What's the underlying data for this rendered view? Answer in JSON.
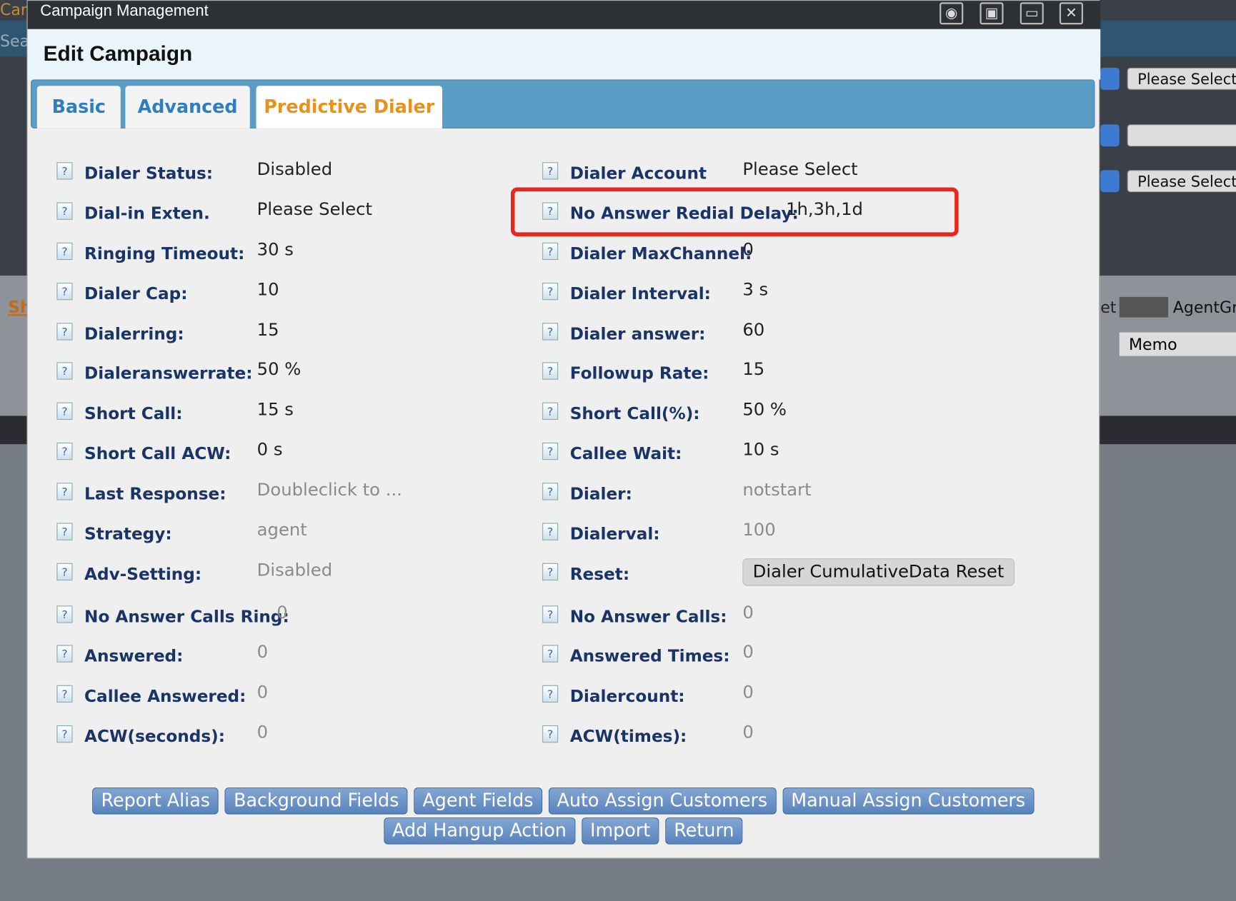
{
  "window": {
    "title": "Campaign Management",
    "heading": "Edit Campaign"
  },
  "background": {
    "left_top": "Can",
    "left_search": "Sea",
    "left_link": "Sh",
    "right_selects": [
      "Please Select",
      "",
      "Please Select"
    ],
    "right_label": "et",
    "right_agent": "AgentGr",
    "right_memo": "Memo"
  },
  "tabs": [
    "Basic",
    "Advanced",
    "Predictive Dialer"
  ],
  "left_fields": [
    {
      "label": "Dialer Status:",
      "value": "Disabled"
    },
    {
      "label": "Dial-in Exten.",
      "value": "Please Select"
    },
    {
      "label": "Ringing Timeout:",
      "value": "30 s"
    },
    {
      "label": "Dialer Cap:",
      "value": "10"
    },
    {
      "label": "Dialerring:",
      "value": "15"
    },
    {
      "label": "Dialeranswerrate:",
      "value": "50 %"
    },
    {
      "label": "Short Call:",
      "value": "15 s"
    },
    {
      "label": "Short Call ACW:",
      "value": "0 s"
    },
    {
      "label": "Last Response:",
      "value": "Doubleclick to ..."
    },
    {
      "label": "Strategy:",
      "value": "agent"
    },
    {
      "label": "Adv-Setting:",
      "value": "Disabled"
    },
    {
      "label": "No Answer Calls Ring:",
      "value": "0"
    },
    {
      "label": "Answered:",
      "value": "0"
    },
    {
      "label": "Callee Answered:",
      "value": "0"
    },
    {
      "label": "ACW(seconds):",
      "value": "0"
    }
  ],
  "right_fields": [
    {
      "label": "Dialer Account",
      "value": "Please Select"
    },
    {
      "label": "No Answer Redial Delay:",
      "value": "1h,3h,1d"
    },
    {
      "label": "Dialer MaxChannel:",
      "value": "0"
    },
    {
      "label": "Dialer Interval:",
      "value": "3 s"
    },
    {
      "label": "Dialer answer:",
      "value": "60"
    },
    {
      "label": "Followup Rate:",
      "value": "15"
    },
    {
      "label": "Short Call(%):",
      "value": "50 %"
    },
    {
      "label": "Callee Wait:",
      "value": "10 s"
    },
    {
      "label": "Dialer:",
      "value": "notstart"
    },
    {
      "label": "Dialerval:",
      "value": "100"
    },
    {
      "label": "Reset:",
      "value": "Dialer CumulativeData Reset"
    },
    {
      "label": "No Answer Calls:",
      "value": "0"
    },
    {
      "label": "Answered Times:",
      "value": "0"
    },
    {
      "label": "Dialercount:",
      "value": "0"
    },
    {
      "label": "ACW(times):",
      "value": "0"
    }
  ],
  "buttons": [
    [
      "Report Alias",
      "Background Fields",
      "Agent Fields",
      "Auto Assign Customers",
      "Manual Assign Customers"
    ],
    [
      "Add Hangup Action",
      "Import",
      "Return"
    ]
  ]
}
